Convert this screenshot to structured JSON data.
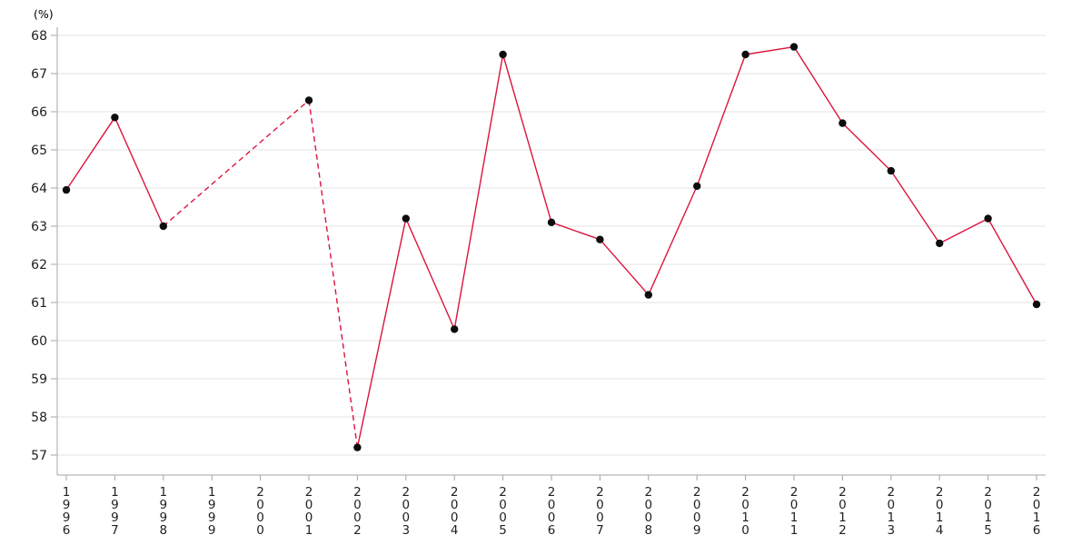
{
  "chart_data": {
    "type": "line",
    "title": "",
    "ylabel": "(%)",
    "xlabel": "",
    "legend": "none",
    "grid": "horizontal",
    "categories": [
      "1996",
      "1997",
      "1998",
      "1999",
      "2000",
      "2001",
      "2002",
      "2003",
      "2004",
      "2005",
      "2006",
      "2007",
      "2008",
      "2009",
      "2010",
      "2011",
      "2012",
      "2013",
      "2014",
      "2015",
      "2016"
    ],
    "series": [
      {
        "name": "percentage",
        "values": [
          63.95,
          65.85,
          63.0,
          null,
          null,
          66.3,
          57.2,
          63.2,
          60.3,
          67.5,
          63.1,
          62.65,
          61.2,
          64.05,
          67.5,
          67.7,
          65.7,
          64.45,
          62.55,
          63.2,
          60.95
        ]
      }
    ],
    "missing_categories": [
      "1999",
      "2000"
    ],
    "dashed_ranges": [
      [
        "1998",
        "2002"
      ]
    ],
    "ylim": [
      57,
      68
    ],
    "ytick_step": 1,
    "yticks": [
      57,
      58,
      59,
      60,
      61,
      62,
      63,
      64,
      65,
      66,
      67,
      68
    ],
    "marker": "filled-circle",
    "colors": {
      "line": "#dc143c",
      "marker": "#0d0d0d",
      "grid": "#e3e3e3",
      "axis": "#a6a6a6",
      "text": "#1f1f1f"
    }
  }
}
